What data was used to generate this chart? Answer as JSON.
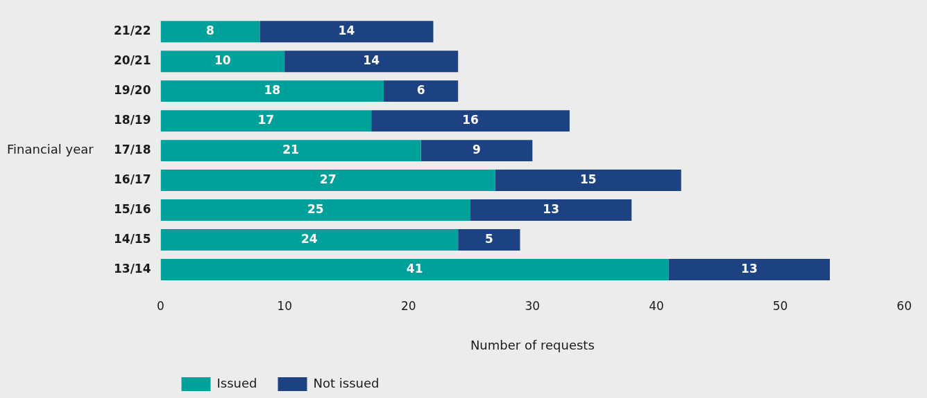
{
  "chart_data": {
    "type": "bar",
    "orientation": "horizontal",
    "stacked": true,
    "xlabel": "Number of requests",
    "ylabel": "Financial year",
    "categories": [
      "21/22",
      "20/21",
      "19/20",
      "18/19",
      "17/18",
      "16/17",
      "15/16",
      "14/15",
      "13/14"
    ],
    "series": [
      {
        "name": "Issued",
        "color": "#00a19a",
        "values": [
          8,
          10,
          18,
          17,
          21,
          27,
          25,
          24,
          41
        ]
      },
      {
        "name": "Not issued",
        "color": "#1d4282",
        "values": [
          14,
          14,
          6,
          16,
          9,
          15,
          13,
          5,
          13
        ]
      }
    ],
    "xlim": [
      0,
      60
    ],
    "xticks": [
      0,
      10,
      20,
      30,
      40,
      50,
      60
    ],
    "grid": false,
    "legend": "bottom left",
    "data_labels": true
  }
}
